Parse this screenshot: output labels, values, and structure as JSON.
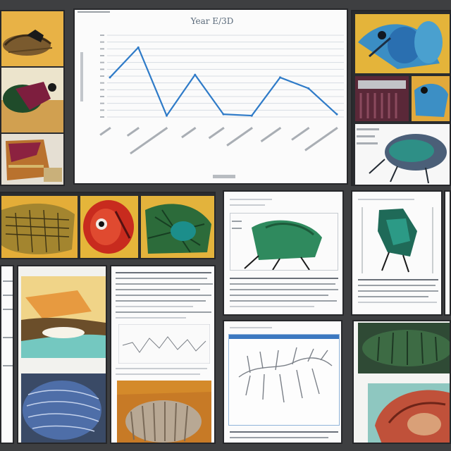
{
  "collage": {
    "theme_colors": {
      "frame": "#3e3f41",
      "paper": "#fbfbfb",
      "chart_line": "#2f7bc8",
      "leaf_green": "#2c6b3a",
      "teal": "#1c8e8b",
      "ochre": "#d5a43f",
      "red": "#c82b1e",
      "blue": "#4e6ea8"
    },
    "icons": [
      "insect-illustration-icon",
      "document-page-icon",
      "vein-network-icon",
      "line-chart-icon"
    ]
  },
  "chart_data": {
    "type": "line",
    "title": "Year E/3D",
    "xlabel": "",
    "ylabel": "",
    "categories": [
      "",
      "",
      "",
      "",
      "",
      "",
      "",
      "",
      ""
    ],
    "series": [
      {
        "values": [
          5.8,
          10.2,
          0.2,
          6.2,
          0.4,
          0.2,
          5.8,
          4.2,
          0.4
        ]
      }
    ],
    "ylim": [
      0,
      12
    ],
    "grid": true
  }
}
